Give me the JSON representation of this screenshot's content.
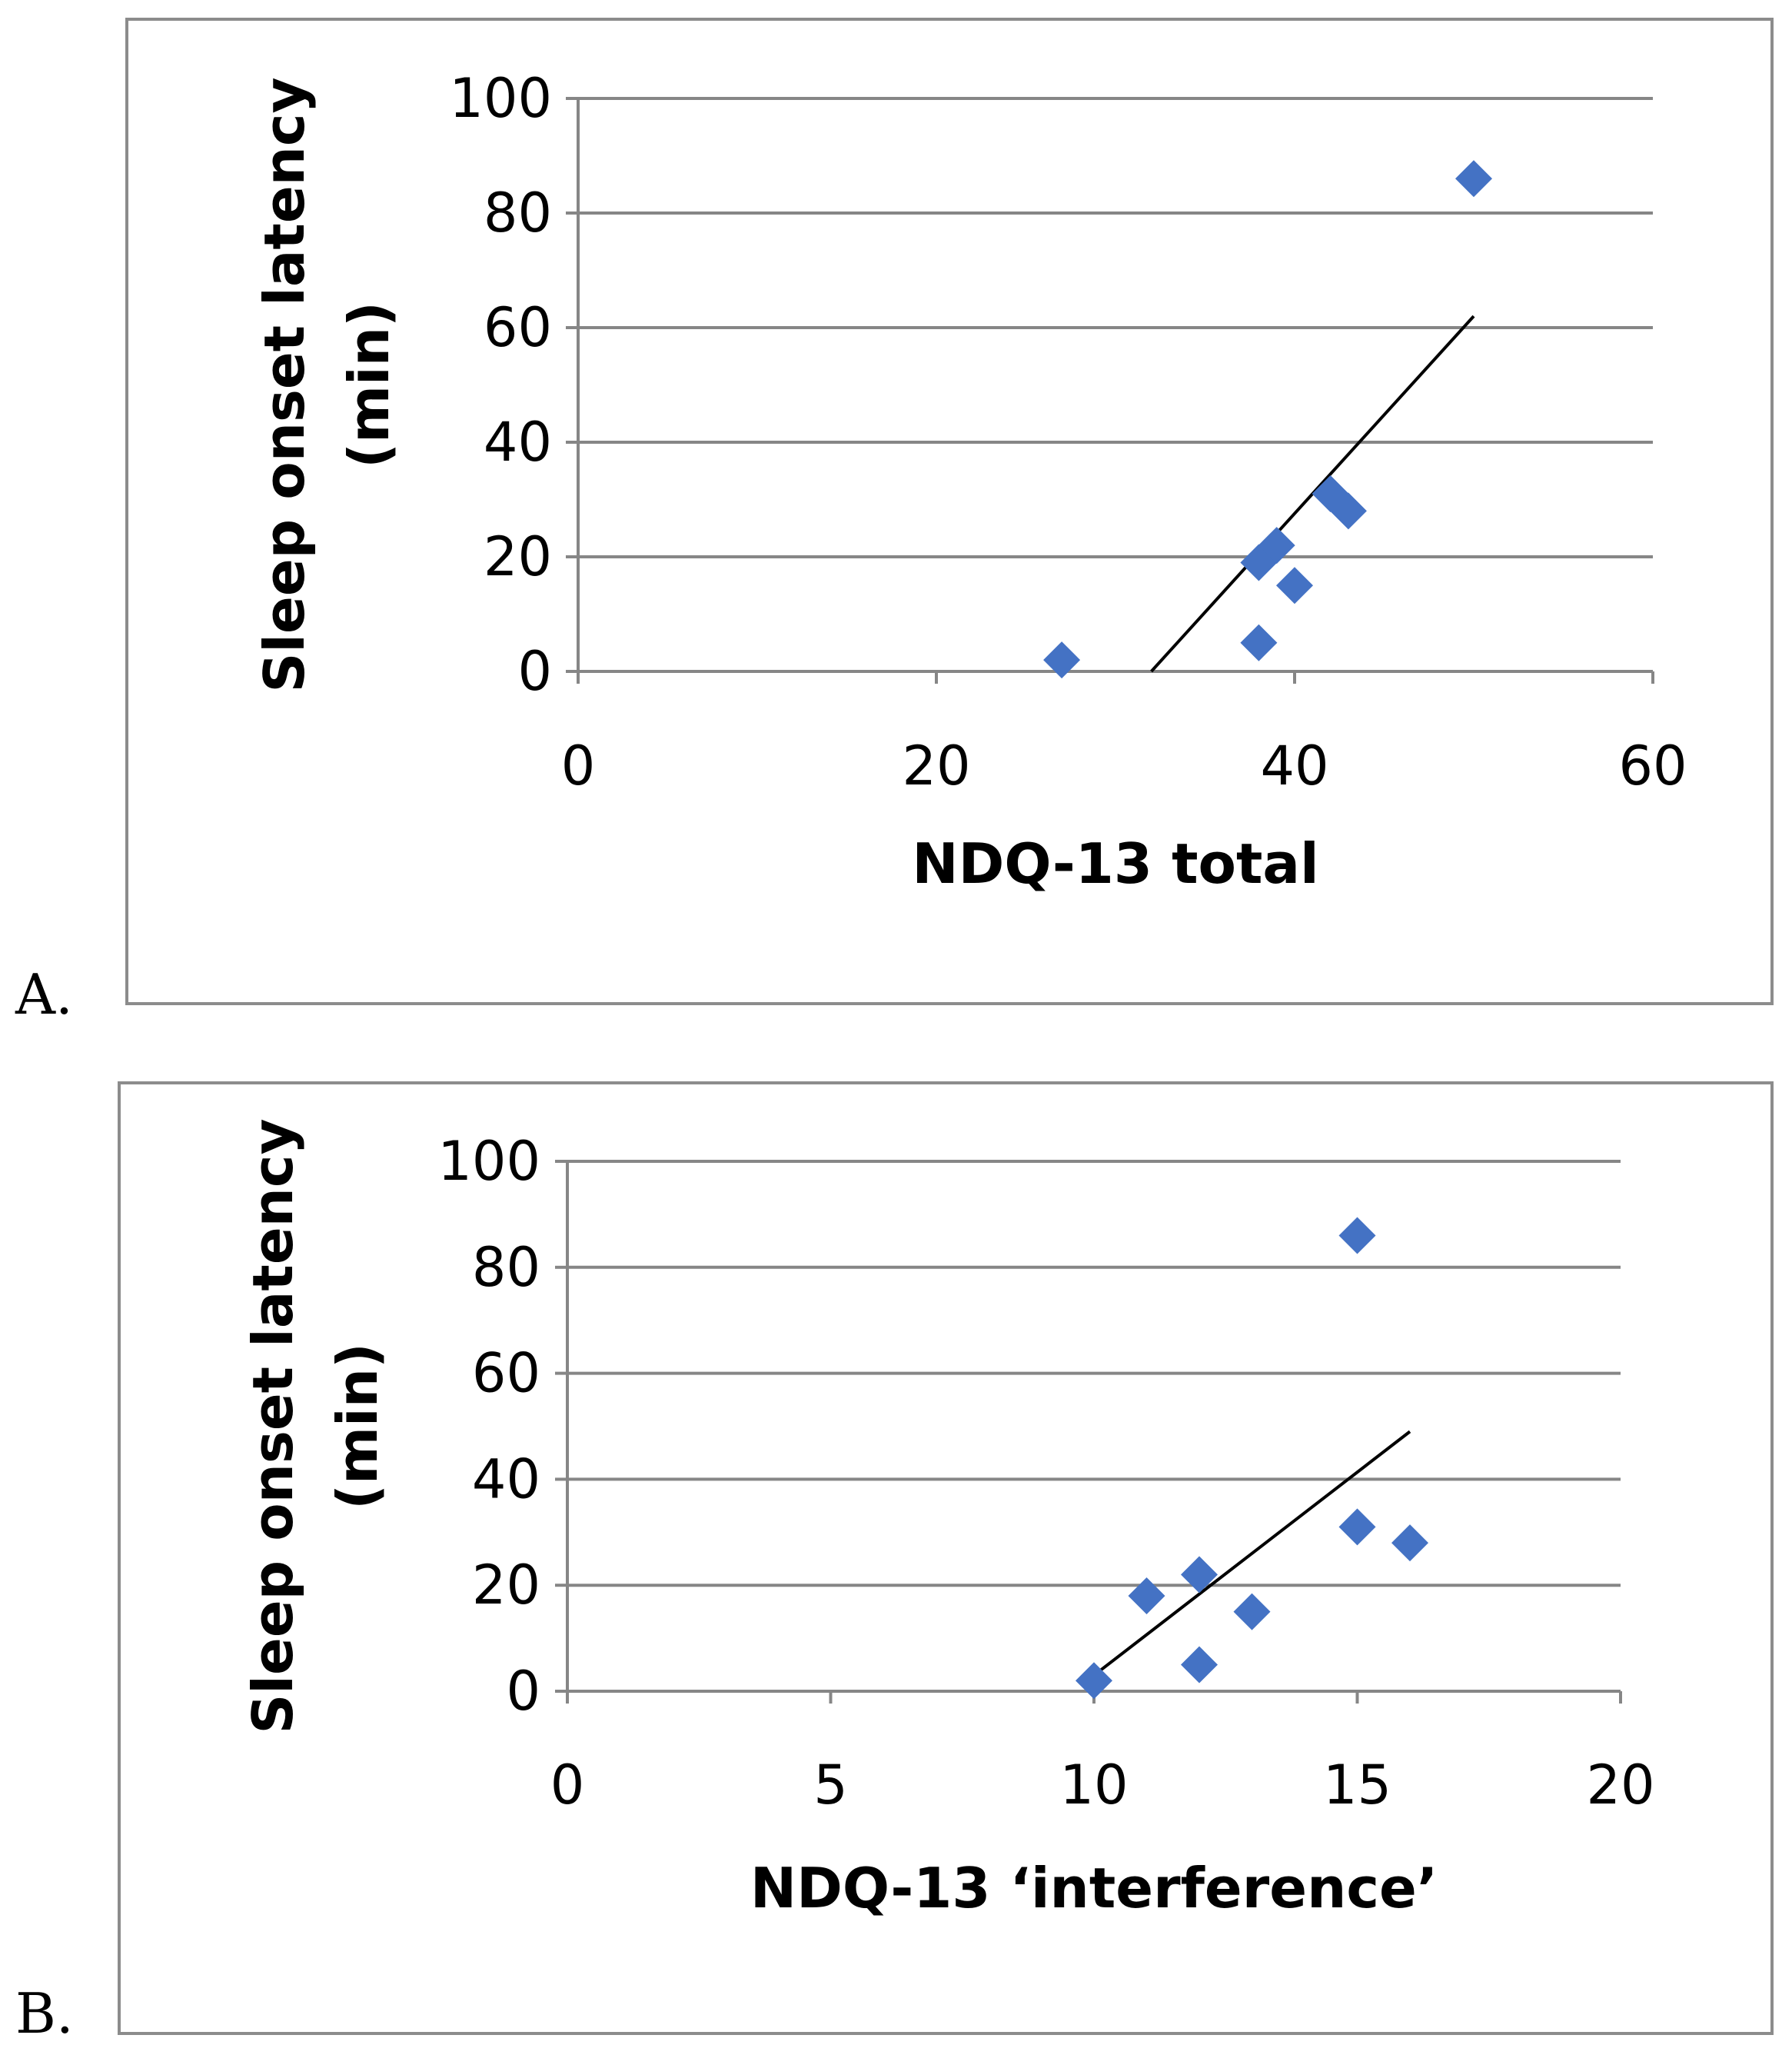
{
  "chart_data": [
    {
      "type": "scatter",
      "panel_label": "A.",
      "title": "",
      "xlabel": "NDQ-13 total",
      "ylabel": "Sleep onset latency",
      "ylabel_unit": "(min)",
      "xlim": [
        0,
        60
      ],
      "ylim": [
        0,
        100
      ],
      "xticks": [
        0,
        20,
        40,
        60
      ],
      "yticks": [
        0,
        20,
        40,
        60,
        80,
        100
      ],
      "grid": "horizontal",
      "marker": "diamond",
      "marker_color": "#4472c4",
      "points": [
        {
          "x": 27,
          "y": 2
        },
        {
          "x": 38,
          "y": 5
        },
        {
          "x": 38,
          "y": 19
        },
        {
          "x": 39,
          "y": 22
        },
        {
          "x": 40,
          "y": 15
        },
        {
          "x": 42,
          "y": 31
        },
        {
          "x": 43,
          "y": 28
        },
        {
          "x": 50,
          "y": 86
        }
      ],
      "trendline": {
        "x": [
          32,
          50
        ],
        "y": [
          0,
          62
        ]
      }
    },
    {
      "type": "scatter",
      "panel_label": "B.",
      "title": "",
      "xlabel": "NDQ-13 ‘interference’",
      "ylabel": "Sleep onset latency",
      "ylabel_unit": "(min)",
      "xlim": [
        0,
        20
      ],
      "ylim": [
        0,
        100
      ],
      "xticks": [
        0,
        5,
        10,
        15,
        20
      ],
      "yticks": [
        0,
        20,
        40,
        60,
        80,
        100
      ],
      "grid": "horizontal",
      "marker": "diamond",
      "marker_color": "#4472c4",
      "points": [
        {
          "x": 10,
          "y": 2
        },
        {
          "x": 11,
          "y": 18
        },
        {
          "x": 12,
          "y": 5
        },
        {
          "x": 12,
          "y": 22
        },
        {
          "x": 13,
          "y": 15
        },
        {
          "x": 15,
          "y": 31
        },
        {
          "x": 16,
          "y": 28
        },
        {
          "x": 15,
          "y": 86
        }
      ],
      "trendline": {
        "x": [
          10,
          16
        ],
        "y": [
          3,
          49
        ]
      }
    }
  ]
}
